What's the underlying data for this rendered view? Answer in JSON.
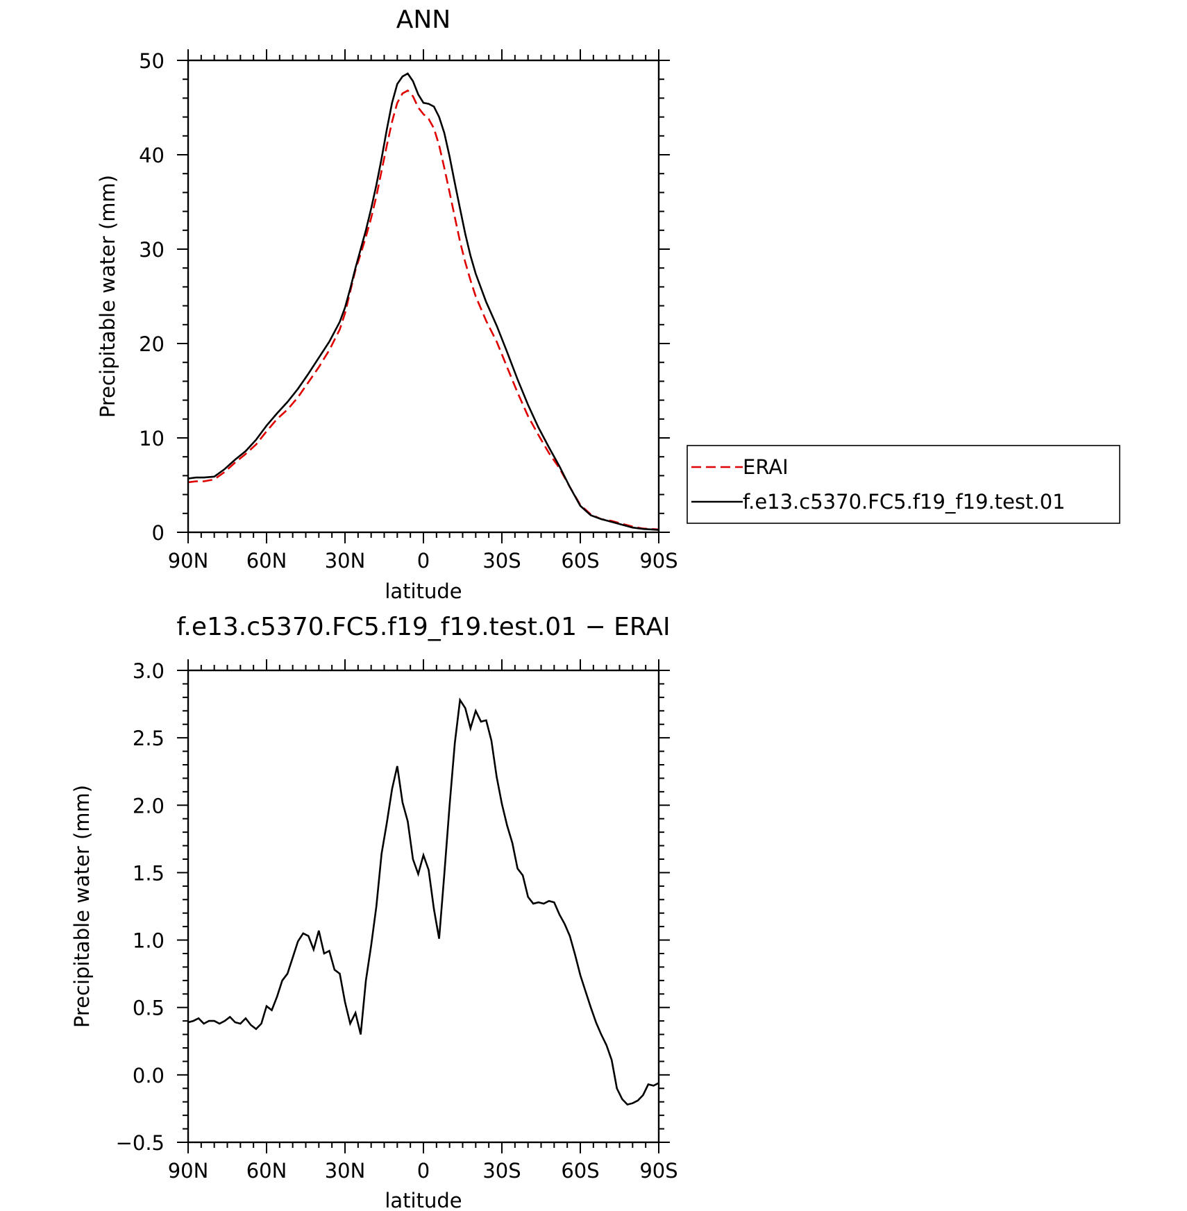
{
  "chart_data": [
    {
      "type": "line",
      "title": "ANN",
      "xlabel": "latitude",
      "ylabel": "Precipitable water (mm)",
      "x_ticks": [
        90,
        60,
        30,
        0,
        -30,
        -60,
        -90
      ],
      "x_tick_labels": [
        "90N",
        "60N",
        "30N",
        "0",
        "30S",
        "60S",
        "90S"
      ],
      "xlim": [
        90,
        -90
      ],
      "ylim": [
        0,
        50
      ],
      "y_ticks": [
        0,
        10,
        20,
        30,
        40,
        50
      ],
      "y_tick_labels": [
        "0",
        "10",
        "20",
        "30",
        "40",
        "50"
      ],
      "grid": false,
      "legend": "right",
      "series": [
        {
          "name": "ERAI",
          "color": "#e00000",
          "dash": "dashed",
          "points": [
            [
              90,
              5.3
            ],
            [
              87,
              5.4
            ],
            [
              84,
              5.4
            ],
            [
              80,
              5.6
            ],
            [
              76,
              6.4
            ],
            [
              72,
              7.4
            ],
            [
              68,
              8.3
            ],
            [
              64,
              9.3
            ],
            [
              60,
              10.7
            ],
            [
              56,
              12.0
            ],
            [
              52,
              13.0
            ],
            [
              48,
              14.3
            ],
            [
              44,
              15.9
            ],
            [
              40,
              17.5
            ],
            [
              36,
              19.3
            ],
            [
              32,
              21.5
            ],
            [
              30,
              23.2
            ],
            [
              28,
              25.5
            ],
            [
              26,
              27.8
            ],
            [
              24,
              29.5
            ],
            [
              22,
              31.3
            ],
            [
              20,
              33.3
            ],
            [
              18,
              35.6
            ],
            [
              16,
              38.3
            ],
            [
              14,
              41.0
            ],
            [
              12,
              43.5
            ],
            [
              10,
              45.5
            ],
            [
              8,
              46.5
            ],
            [
              6,
              46.8
            ],
            [
              4,
              46.2
            ],
            [
              2,
              45.0
            ],
            [
              0,
              44.3
            ],
            [
              -2,
              43.8
            ],
            [
              -4,
              42.8
            ],
            [
              -6,
              41.0
            ],
            [
              -8,
              38.6
            ],
            [
              -10,
              36.0
            ],
            [
              -12,
              33.4
            ],
            [
              -14,
              30.8
            ],
            [
              -16,
              28.6
            ],
            [
              -18,
              26.7
            ],
            [
              -20,
              25.0
            ],
            [
              -24,
              22.4
            ],
            [
              -28,
              20.2
            ],
            [
              -32,
              17.5
            ],
            [
              -36,
              14.8
            ],
            [
              -40,
              12.3
            ],
            [
              -44,
              10.3
            ],
            [
              -48,
              8.4
            ],
            [
              -52,
              6.8
            ],
            [
              -56,
              4.8
            ],
            [
              -60,
              2.9
            ],
            [
              -64,
              1.9
            ],
            [
              -68,
              1.4
            ],
            [
              -72,
              1.2
            ],
            [
              -76,
              0.9
            ],
            [
              -80,
              0.6
            ],
            [
              -84,
              0.4
            ],
            [
              -90,
              0.3
            ]
          ]
        },
        {
          "name": "f.e13.c5370.FC5.f19_f19.test.01",
          "color": "#000000",
          "dash": "solid",
          "points": [
            [
              90,
              5.7
            ],
            [
              87,
              5.8
            ],
            [
              84,
              5.8
            ],
            [
              80,
              5.9
            ],
            [
              76,
              6.7
            ],
            [
              72,
              7.7
            ],
            [
              68,
              8.6
            ],
            [
              64,
              9.8
            ],
            [
              60,
              11.3
            ],
            [
              56,
              12.6
            ],
            [
              52,
              13.8
            ],
            [
              48,
              15.2
            ],
            [
              44,
              16.8
            ],
            [
              40,
              18.5
            ],
            [
              36,
              20.2
            ],
            [
              32,
              22.3
            ],
            [
              30,
              23.8
            ],
            [
              28,
              25.8
            ],
            [
              26,
              28.0
            ],
            [
              24,
              30.0
            ],
            [
              22,
              32.0
            ],
            [
              20,
              34.3
            ],
            [
              18,
              36.8
            ],
            [
              16,
              39.6
            ],
            [
              14,
              42.7
            ],
            [
              12,
              45.5
            ],
            [
              10,
              47.5
            ],
            [
              8,
              48.3
            ],
            [
              6,
              48.6
            ],
            [
              4,
              47.8
            ],
            [
              2,
              46.4
            ],
            [
              0,
              45.5
            ],
            [
              -2,
              45.4
            ],
            [
              -4,
              45.1
            ],
            [
              -6,
              44.0
            ],
            [
              -8,
              42.3
            ],
            [
              -10,
              39.8
            ],
            [
              -12,
              37.0
            ],
            [
              -14,
              34.3
            ],
            [
              -16,
              31.6
            ],
            [
              -18,
              29.3
            ],
            [
              -20,
              27.4
            ],
            [
              -24,
              24.4
            ],
            [
              -28,
              21.9
            ],
            [
              -32,
              19.1
            ],
            [
              -36,
              16.2
            ],
            [
              -40,
              13.5
            ],
            [
              -44,
              11.1
            ],
            [
              -48,
              9.0
            ],
            [
              -52,
              7.0
            ],
            [
              -56,
              4.8
            ],
            [
              -60,
              2.8
            ],
            [
              -64,
              1.8
            ],
            [
              -68,
              1.4
            ],
            [
              -72,
              1.1
            ],
            [
              -76,
              0.8
            ],
            [
              -80,
              0.5
            ],
            [
              -84,
              0.35
            ],
            [
              -90,
              0.25
            ]
          ]
        }
      ]
    },
    {
      "type": "line",
      "title": "f.e13.c5370.FC5.f19_f19.test.01 − ERAI",
      "xlabel": "latitude",
      "ylabel": "Precipitable water (mm)",
      "x_ticks": [
        90,
        60,
        30,
        0,
        -30,
        -60,
        -90
      ],
      "x_tick_labels": [
        "90N",
        "60N",
        "30N",
        "0",
        "30S",
        "60S",
        "90S"
      ],
      "xlim": [
        90,
        -90
      ],
      "ylim": [
        -0.5,
        3.0
      ],
      "y_ticks": [
        -0.5,
        0.0,
        0.5,
        1.0,
        1.5,
        2.0,
        2.5,
        3.0
      ],
      "y_tick_labels": [
        "−0.5",
        "0.0",
        "0.5",
        "1.0",
        "1.5",
        "2.0",
        "2.5",
        "3.0"
      ],
      "grid": false,
      "legend": "none",
      "series": [
        {
          "color": "#000000",
          "dash": "solid",
          "points": [
            [
              90,
              0.39
            ],
            [
              88,
              0.4
            ],
            [
              86,
              0.42
            ],
            [
              84,
              0.38
            ],
            [
              82,
              0.4
            ],
            [
              80,
              0.4
            ],
            [
              78,
              0.38
            ],
            [
              76,
              0.4
            ],
            [
              74,
              0.43
            ],
            [
              72,
              0.39
            ],
            [
              70,
              0.38
            ],
            [
              68,
              0.42
            ],
            [
              66,
              0.37
            ],
            [
              64,
              0.34
            ],
            [
              62,
              0.38
            ],
            [
              60,
              0.51
            ],
            [
              58,
              0.48
            ],
            [
              56,
              0.58
            ],
            [
              54,
              0.7
            ],
            [
              52,
              0.75
            ],
            [
              50,
              0.87
            ],
            [
              48,
              0.99
            ],
            [
              46,
              1.05
            ],
            [
              44,
              1.03
            ],
            [
              42,
              0.93
            ],
            [
              40,
              1.07
            ],
            [
              38,
              0.9
            ],
            [
              36,
              0.92
            ],
            [
              34,
              0.78
            ],
            [
              32,
              0.75
            ],
            [
              30,
              0.54
            ],
            [
              28,
              0.38
            ],
            [
              26,
              0.46
            ],
            [
              24,
              0.3
            ],
            [
              22,
              0.7
            ],
            [
              20,
              0.96
            ],
            [
              18,
              1.25
            ],
            [
              16,
              1.64
            ],
            [
              14,
              1.87
            ],
            [
              12,
              2.12
            ],
            [
              10,
              2.29
            ],
            [
              8,
              2.02
            ],
            [
              6,
              1.88
            ],
            [
              4,
              1.6
            ],
            [
              2,
              1.49
            ],
            [
              0,
              1.63
            ],
            [
              -2,
              1.52
            ],
            [
              -4,
              1.23
            ],
            [
              -6,
              1.01
            ],
            [
              -8,
              1.49
            ],
            [
              -10,
              2.0
            ],
            [
              -12,
              2.46
            ],
            [
              -14,
              2.78
            ],
            [
              -16,
              2.72
            ],
            [
              -18,
              2.57
            ],
            [
              -20,
              2.7
            ],
            [
              -22,
              2.62
            ],
            [
              -24,
              2.63
            ],
            [
              -26,
              2.48
            ],
            [
              -28,
              2.21
            ],
            [
              -30,
              2.01
            ],
            [
              -32,
              1.85
            ],
            [
              -34,
              1.72
            ],
            [
              -36,
              1.53
            ],
            [
              -38,
              1.48
            ],
            [
              -40,
              1.32
            ],
            [
              -42,
              1.27
            ],
            [
              -44,
              1.28
            ],
            [
              -46,
              1.27
            ],
            [
              -48,
              1.29
            ],
            [
              -50,
              1.28
            ],
            [
              -52,
              1.19
            ],
            [
              -54,
              1.12
            ],
            [
              -56,
              1.03
            ],
            [
              -58,
              0.89
            ],
            [
              -60,
              0.74
            ],
            [
              -62,
              0.62
            ],
            [
              -64,
              0.5
            ],
            [
              -66,
              0.39
            ],
            [
              -68,
              0.3
            ],
            [
              -70,
              0.22
            ],
            [
              -72,
              0.11
            ],
            [
              -74,
              -0.1
            ],
            [
              -76,
              -0.18
            ],
            [
              -78,
              -0.22
            ],
            [
              -80,
              -0.21
            ],
            [
              -82,
              -0.19
            ],
            [
              -84,
              -0.15
            ],
            [
              -86,
              -0.07
            ],
            [
              -88,
              -0.08
            ],
            [
              -90,
              -0.06
            ],
            [
              -92,
              -0.03
            ],
            [
              -94,
              -0.05
            ],
            [
              -96,
              -0.08
            ],
            [
              -98,
              -0.07
            ]
          ]
        }
      ]
    }
  ]
}
